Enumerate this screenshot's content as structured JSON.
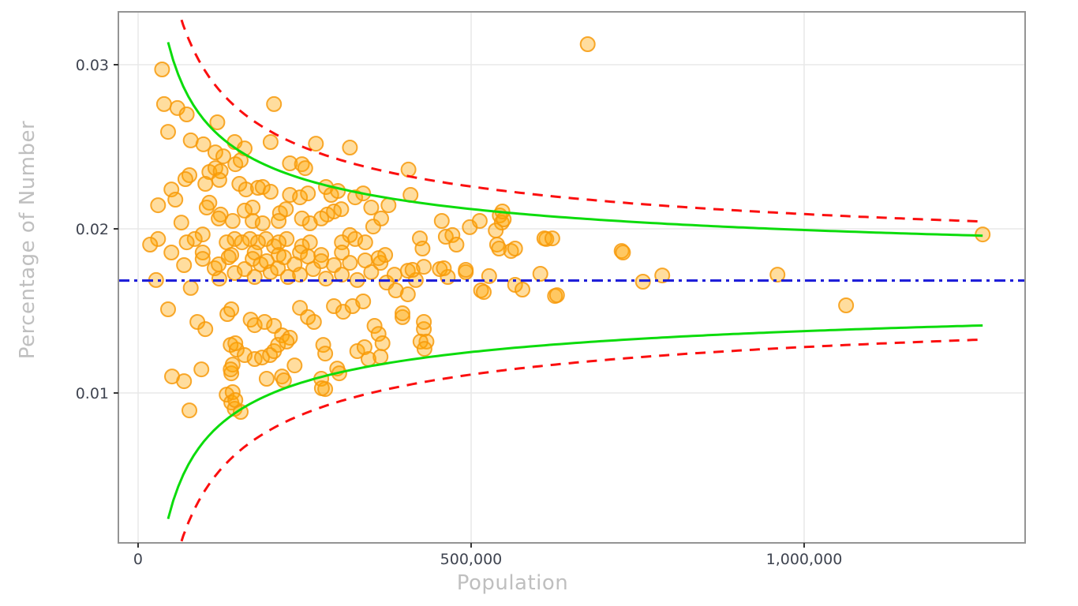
{
  "chart_data": {
    "type": "scatter",
    "title": "",
    "xlabel": "Population",
    "ylabel": "Percentage of Number",
    "xlim": [
      -29600,
      1331800
    ],
    "ylim": [
      0.00087,
      0.03322
    ],
    "grid": true,
    "legend_position": "none",
    "x_ticks": [
      {
        "value": 0,
        "label": "0"
      },
      {
        "value": 500000,
        "label": "500,000"
      },
      {
        "value": 1000000,
        "label": "1,000,000"
      }
    ],
    "y_ticks": [
      {
        "value": 0.01,
        "label": "0.01"
      },
      {
        "value": 0.02,
        "label": "0.02"
      },
      {
        "value": 0.03,
        "label": "0.03"
      }
    ],
    "colors": {
      "point_fill": "#ffa500",
      "point_stroke": "#f79a0a",
      "inner_limit": "#0cdc0c",
      "outer_limit": "#fb0f0f",
      "mean_line": "#1f1fd9",
      "gridline": "#e8e8e8",
      "panel_border": "#949494",
      "tick_text": "#3f4450",
      "axis_title_text": "#bfbfbf"
    },
    "mean_line": {
      "value": 0.01685,
      "style": "dash-dot"
    },
    "funnel_limits": {
      "mean": 0.01685,
      "n_min": 45000,
      "n_max": 1268000,
      "inner": {
        "k": 3.08,
        "style": "solid"
      },
      "outer": {
        "k": 4.05,
        "style": "dashed"
      }
    },
    "points": [
      [
        36000,
        0.02971
      ],
      [
        39000,
        0.0276
      ],
      [
        59000,
        0.02736
      ],
      [
        73000,
        0.02697
      ],
      [
        45000,
        0.02591
      ],
      [
        119000,
        0.02649
      ],
      [
        204000,
        0.0276
      ],
      [
        79000,
        0.02539
      ],
      [
        98000,
        0.02515
      ],
      [
        199000,
        0.02529
      ],
      [
        267000,
        0.02519
      ],
      [
        318000,
        0.02495
      ],
      [
        116000,
        0.02466
      ],
      [
        128000,
        0.02442
      ],
      [
        145000,
        0.02529
      ],
      [
        160000,
        0.0249
      ],
      [
        146000,
        0.02394
      ],
      [
        154000,
        0.02418
      ],
      [
        228000,
        0.02399
      ],
      [
        246000,
        0.02394
      ],
      [
        251000,
        0.0237
      ],
      [
        77000,
        0.02327
      ],
      [
        71000,
        0.02303
      ],
      [
        107000,
        0.02346
      ],
      [
        116000,
        0.0237
      ],
      [
        124000,
        0.02351
      ],
      [
        122000,
        0.02298
      ],
      [
        101000,
        0.02274
      ],
      [
        107000,
        0.02159
      ],
      [
        103000,
        0.0213
      ],
      [
        50000,
        0.0224
      ],
      [
        56000,
        0.02178
      ],
      [
        30000,
        0.02144
      ],
      [
        65000,
        0.02038
      ],
      [
        152000,
        0.02274
      ],
      [
        162000,
        0.0224
      ],
      [
        180000,
        0.0225
      ],
      [
        187000,
        0.02255
      ],
      [
        199000,
        0.02226
      ],
      [
        228000,
        0.02207
      ],
      [
        243000,
        0.02192
      ],
      [
        255000,
        0.02216
      ],
      [
        282000,
        0.02255
      ],
      [
        290000,
        0.02207
      ],
      [
        300000,
        0.02231
      ],
      [
        326000,
        0.02192
      ],
      [
        338000,
        0.02216
      ],
      [
        353000,
        0.02014
      ],
      [
        284000,
        0.02087
      ],
      [
        294000,
        0.02106
      ],
      [
        305000,
        0.0212
      ],
      [
        213000,
        0.02096
      ],
      [
        222000,
        0.0212
      ],
      [
        172000,
        0.0213
      ],
      [
        160000,
        0.02111
      ],
      [
        124000,
        0.02087
      ],
      [
        121000,
        0.02063
      ],
      [
        142000,
        0.02048
      ],
      [
        172000,
        0.02048
      ],
      [
        187000,
        0.02034
      ],
      [
        211000,
        0.02048
      ],
      [
        246000,
        0.02063
      ],
      [
        258000,
        0.02034
      ],
      [
        275000,
        0.02063
      ],
      [
        318000,
        0.01962
      ],
      [
        326000,
        0.01938
      ],
      [
        306000,
        0.01918
      ],
      [
        258000,
        0.01918
      ],
      [
        246000,
        0.01894
      ],
      [
        223000,
        0.01938
      ],
      [
        211000,
        0.01918
      ],
      [
        204000,
        0.01894
      ],
      [
        192000,
        0.01938
      ],
      [
        180000,
        0.01918
      ],
      [
        168000,
        0.01938
      ],
      [
        156000,
        0.01918
      ],
      [
        145000,
        0.01938
      ],
      [
        133000,
        0.01918
      ],
      [
        97000,
        0.01966
      ],
      [
        85000,
        0.01938
      ],
      [
        73000,
        0.01918
      ],
      [
        30000,
        0.01938
      ],
      [
        18000,
        0.01904
      ],
      [
        50000,
        0.01856
      ],
      [
        97000,
        0.01856
      ],
      [
        140000,
        0.01841
      ],
      [
        175000,
        0.01856
      ],
      [
        211000,
        0.01841
      ],
      [
        243000,
        0.01856
      ],
      [
        275000,
        0.01841
      ],
      [
        306000,
        0.01856
      ],
      [
        341000,
        0.01918
      ],
      [
        350000,
        0.0213
      ],
      [
        27000,
        0.01688
      ],
      [
        69000,
        0.01779
      ],
      [
        79000,
        0.0164
      ],
      [
        97000,
        0.01817
      ],
      [
        115000,
        0.0176
      ],
      [
        121000,
        0.01784
      ],
      [
        122000,
        0.01697
      ],
      [
        136000,
        0.01827
      ],
      [
        145000,
        0.01731
      ],
      [
        160000,
        0.01755
      ],
      [
        172000,
        0.01817
      ],
      [
        175000,
        0.01707
      ],
      [
        184000,
        0.01784
      ],
      [
        193000,
        0.01803
      ],
      [
        199000,
        0.01736
      ],
      [
        210000,
        0.0176
      ],
      [
        219000,
        0.01827
      ],
      [
        225000,
        0.01707
      ],
      [
        235000,
        0.01784
      ],
      [
        243000,
        0.01721
      ],
      [
        255000,
        0.01832
      ],
      [
        263000,
        0.01755
      ],
      [
        275000,
        0.01803
      ],
      [
        282000,
        0.01697
      ],
      [
        294000,
        0.01779
      ],
      [
        306000,
        0.01721
      ],
      [
        318000,
        0.01793
      ],
      [
        329000,
        0.01688
      ],
      [
        341000,
        0.01808
      ],
      [
        350000,
        0.01736
      ],
      [
        364000,
        0.01793
      ],
      [
        373000,
        0.01673
      ],
      [
        385000,
        0.01721
      ],
      [
        405000,
        0.01745
      ],
      [
        417000,
        0.01688
      ],
      [
        429000,
        0.01769
      ],
      [
        453000,
        0.01755
      ],
      [
        465000,
        0.01707
      ],
      [
        492000,
        0.01736
      ],
      [
        515000,
        0.01625
      ],
      [
        527000,
        0.01712
      ],
      [
        566000,
        0.01659
      ],
      [
        45000,
        0.0151
      ],
      [
        89000,
        0.01433
      ],
      [
        101000,
        0.01389
      ],
      [
        134000,
        0.01481
      ],
      [
        140000,
        0.0151
      ],
      [
        169000,
        0.01447
      ],
      [
        175000,
        0.01413
      ],
      [
        190000,
        0.01433
      ],
      [
        204000,
        0.01409
      ],
      [
        216000,
        0.01351
      ],
      [
        228000,
        0.01337
      ],
      [
        243000,
        0.01519
      ],
      [
        255000,
        0.01462
      ],
      [
        264000,
        0.01433
      ],
      [
        294000,
        0.01529
      ],
      [
        308000,
        0.01495
      ],
      [
        322000,
        0.01529
      ],
      [
        338000,
        0.01558
      ],
      [
        355000,
        0.01409
      ],
      [
        361000,
        0.0136
      ],
      [
        397000,
        0.01462
      ],
      [
        429000,
        0.01389
      ],
      [
        433000,
        0.01313
      ],
      [
        139000,
        0.01293
      ],
      [
        148000,
        0.01264
      ],
      [
        160000,
        0.01231
      ],
      [
        140000,
        0.0112
      ],
      [
        95000,
        0.01144
      ],
      [
        51000,
        0.01101
      ],
      [
        69000,
        0.01072
      ],
      [
        133000,
        0.0099
      ],
      [
        140000,
        0.00942
      ],
      [
        145000,
        0.00904
      ],
      [
        77000,
        0.00894
      ],
      [
        275000,
        0.01087
      ],
      [
        281000,
        0.01024
      ],
      [
        146000,
        0.01303
      ],
      [
        142000,
        0.01173
      ],
      [
        139000,
        0.01144
      ],
      [
        175000,
        0.01207
      ],
      [
        186000,
        0.01216
      ],
      [
        198000,
        0.01231
      ],
      [
        204000,
        0.01255
      ],
      [
        210000,
        0.01293
      ],
      [
        223000,
        0.01313
      ],
      [
        193000,
        0.01087
      ],
      [
        216000,
        0.01101
      ],
      [
        219000,
        0.01077
      ],
      [
        235000,
        0.01168
      ],
      [
        278000,
        0.01293
      ],
      [
        281000,
        0.0124
      ],
      [
        299000,
        0.01149
      ],
      [
        302000,
        0.0112
      ],
      [
        329000,
        0.01255
      ],
      [
        340000,
        0.01279
      ],
      [
        346000,
        0.01207
      ],
      [
        364000,
        0.01221
      ],
      [
        367000,
        0.01303
      ],
      [
        424000,
        0.01313
      ],
      [
        430000,
        0.01269
      ],
      [
        276000,
        0.01029
      ],
      [
        142000,
        0.01005
      ],
      [
        146000,
        0.00957
      ],
      [
        154000,
        0.00885
      ],
      [
        406000,
        0.02361
      ],
      [
        409000,
        0.02207
      ],
      [
        376000,
        0.02144
      ],
      [
        365000,
        0.02063
      ],
      [
        456000,
        0.02048
      ],
      [
        498000,
        0.0201
      ],
      [
        513000,
        0.02048
      ],
      [
        462000,
        0.01952
      ],
      [
        472000,
        0.01962
      ],
      [
        478000,
        0.01904
      ],
      [
        423000,
        0.01942
      ],
      [
        427000,
        0.0188
      ],
      [
        371000,
        0.01841
      ],
      [
        361000,
        0.01822
      ],
      [
        412000,
        0.0175
      ],
      [
        459000,
        0.0176
      ],
      [
        492000,
        0.0175
      ],
      [
        539000,
        0.01904
      ],
      [
        542000,
        0.0188
      ],
      [
        543000,
        0.02082
      ],
      [
        546000,
        0.02038
      ],
      [
        560000,
        0.01865
      ],
      [
        613000,
        0.01938
      ],
      [
        726000,
        0.01865
      ],
      [
        604000,
        0.01726
      ],
      [
        577000,
        0.0163
      ],
      [
        519000,
        0.01615
      ],
      [
        626000,
        0.01591
      ],
      [
        387000,
        0.01625
      ],
      [
        405000,
        0.01601
      ],
      [
        397000,
        0.01486
      ],
      [
        429000,
        0.01433
      ],
      [
        675000,
        0.03125
      ],
      [
        537000,
        0.0199
      ],
      [
        547000,
        0.02106
      ],
      [
        549000,
        0.02058
      ],
      [
        566000,
        0.0188
      ],
      [
        610000,
        0.01942
      ],
      [
        622000,
        0.01942
      ],
      [
        629000,
        0.01596
      ],
      [
        728000,
        0.01856
      ],
      [
        758000,
        0.01678
      ],
      [
        787000,
        0.01716
      ],
      [
        960000,
        0.01721
      ],
      [
        1063000,
        0.01534
      ],
      [
        1268000,
        0.01966
      ]
    ],
    "point_style": {
      "radius": 9,
      "fill_opacity": 0.38,
      "stroke_opacity": 0.85,
      "stroke_width": 2
    }
  }
}
